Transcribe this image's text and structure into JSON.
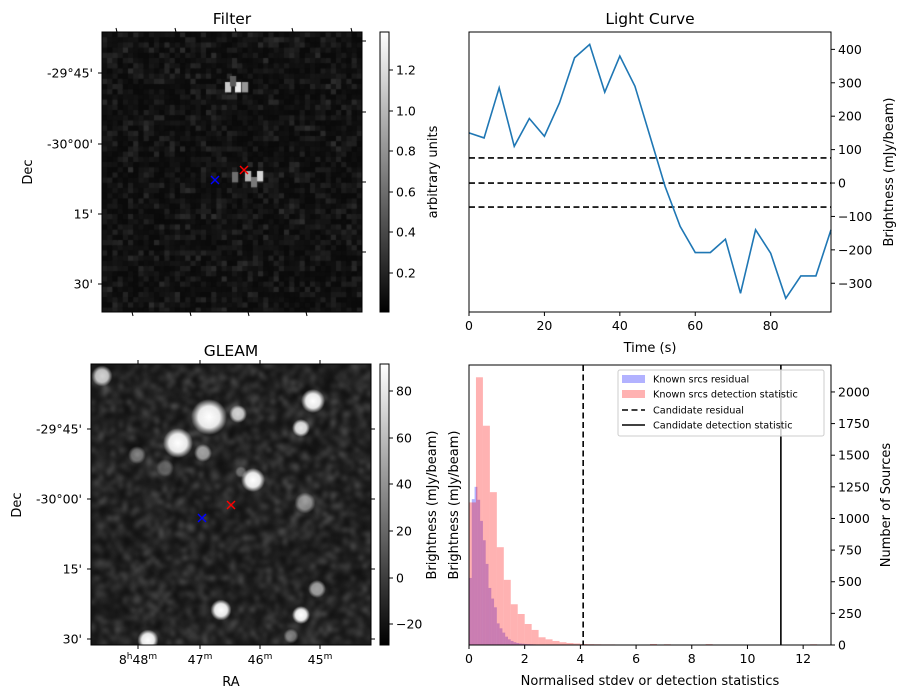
{
  "chart_data": [
    {
      "type": "heatmap",
      "title": "Filter",
      "ylabel": "Dec",
      "y_ticks": [
        "-29°45'",
        "-30°00'",
        "15'",
        "30'"
      ],
      "colorbar": {
        "label": "arbitrary units",
        "ticks": [
          "0.2",
          "0.4",
          "0.6",
          "0.8",
          "1.0",
          "1.2"
        ],
        "range": [
          0.01,
          1.39
        ],
        "cmap": "gray"
      },
      "markers": [
        {
          "name": "blue-cross",
          "color": "#0000ff"
        },
        {
          "name": "red-cross",
          "color": "#ff0000"
        }
      ]
    },
    {
      "type": "line",
      "title": "Light Curve",
      "xlabel": "Time (s)",
      "ylabel": "Brightness (mJy/beam)",
      "xlim": [
        0,
        96
      ],
      "ylim": [
        -386,
        452
      ],
      "x_ticks": [
        "0",
        "20",
        "40",
        "60",
        "80"
      ],
      "y_ticks": [
        "400",
        "300",
        "200",
        "100",
        "0",
        "−100",
        "−200",
        "−300"
      ],
      "series": [
        {
          "name": "light curve",
          "color": "#1f77b4",
          "x": [
            0,
            4,
            8,
            12,
            16,
            20,
            24,
            28,
            32,
            36,
            40,
            44,
            48,
            52,
            56,
            60,
            64,
            68,
            72,
            76,
            80,
            84,
            88,
            92,
            96
          ],
          "y": [
            150,
            135,
            285,
            110,
            193,
            140,
            240,
            375,
            415,
            272,
            380,
            290,
            140,
            -10,
            -130,
            -208,
            -208,
            -168,
            -330,
            -140,
            -210,
            -345,
            -278,
            -278,
            -140
          ]
        }
      ],
      "hlines": [
        75,
        0,
        -72
      ]
    },
    {
      "type": "heatmap",
      "title": "GLEAM",
      "xlabel": "RA",
      "ylabel": "Dec",
      "x_ticks": [
        "8h48m",
        "47m",
        "46m",
        "45m"
      ],
      "y_ticks": [
        "-29°45'",
        "-30°00'",
        "15'",
        "30'"
      ],
      "colorbar": {
        "label": "Brightness (mJy/beam)",
        "ticks": [
          "80",
          "60",
          "40",
          "20",
          "0",
          "−20"
        ],
        "range": [
          -29,
          91.6
        ],
        "cmap": "gray"
      },
      "markers": [
        {
          "name": "blue-cross",
          "color": "#0000ff"
        },
        {
          "name": "red-cross",
          "color": "#ff0000"
        }
      ]
    },
    {
      "type": "bar",
      "xlabel": "Normalised stdev or detection statistics",
      "ylabel_left": "Brightness (mJy/beam)",
      "ylabel_right": "Number of Sources",
      "xlim": [
        0,
        13
      ],
      "ylim": [
        0,
        2213
      ],
      "x_ticks": [
        "0",
        "2",
        "4",
        "6",
        "8",
        "10",
        "12"
      ],
      "y_ticks": [
        "0",
        "250",
        "500",
        "750",
        "1000",
        "1250",
        "1500",
        "1750",
        "2000"
      ],
      "series": [
        {
          "name": "Known srcs residual",
          "color": "#0000ff",
          "bin_width": 0.1,
          "start": 0,
          "values": [
            530,
            1153,
            1250,
            1148,
            981,
            828,
            641,
            451,
            367,
            298,
            171,
            132,
            98,
            66,
            45,
            32,
            22,
            16,
            12,
            10,
            8,
            7,
            6,
            5,
            4,
            4,
            3,
            3,
            2,
            2
          ]
        },
        {
          "name": "Known srcs detection statistic",
          "color": "#ff0000",
          "bin_width": 0.25,
          "start": 0,
          "values": [
            1127,
            2116,
            1733,
            1208,
            773,
            515,
            322,
            245,
            166,
            119,
            61,
            45,
            32,
            22,
            16,
            12,
            8,
            7,
            6,
            5,
            5,
            4,
            3,
            3,
            0,
            0,
            8,
            0,
            6,
            0,
            0,
            0,
            0,
            0,
            7,
            0,
            0,
            0,
            0,
            0,
            0,
            0,
            0,
            0,
            0,
            0,
            0,
            0,
            0,
            6
          ]
        }
      ],
      "vlines": [
        {
          "name": "Candidate residual",
          "x": 4.1,
          "style": "dashed"
        },
        {
          "name": "Candidate detection statistic",
          "x": 11.2,
          "style": "solid"
        }
      ],
      "legend": {
        "placement": "top-right",
        "entries": [
          "Known srcs residual",
          "Known srcs detection statistic",
          "Candidate residual",
          "Candidate detection statistic"
        ]
      }
    }
  ]
}
